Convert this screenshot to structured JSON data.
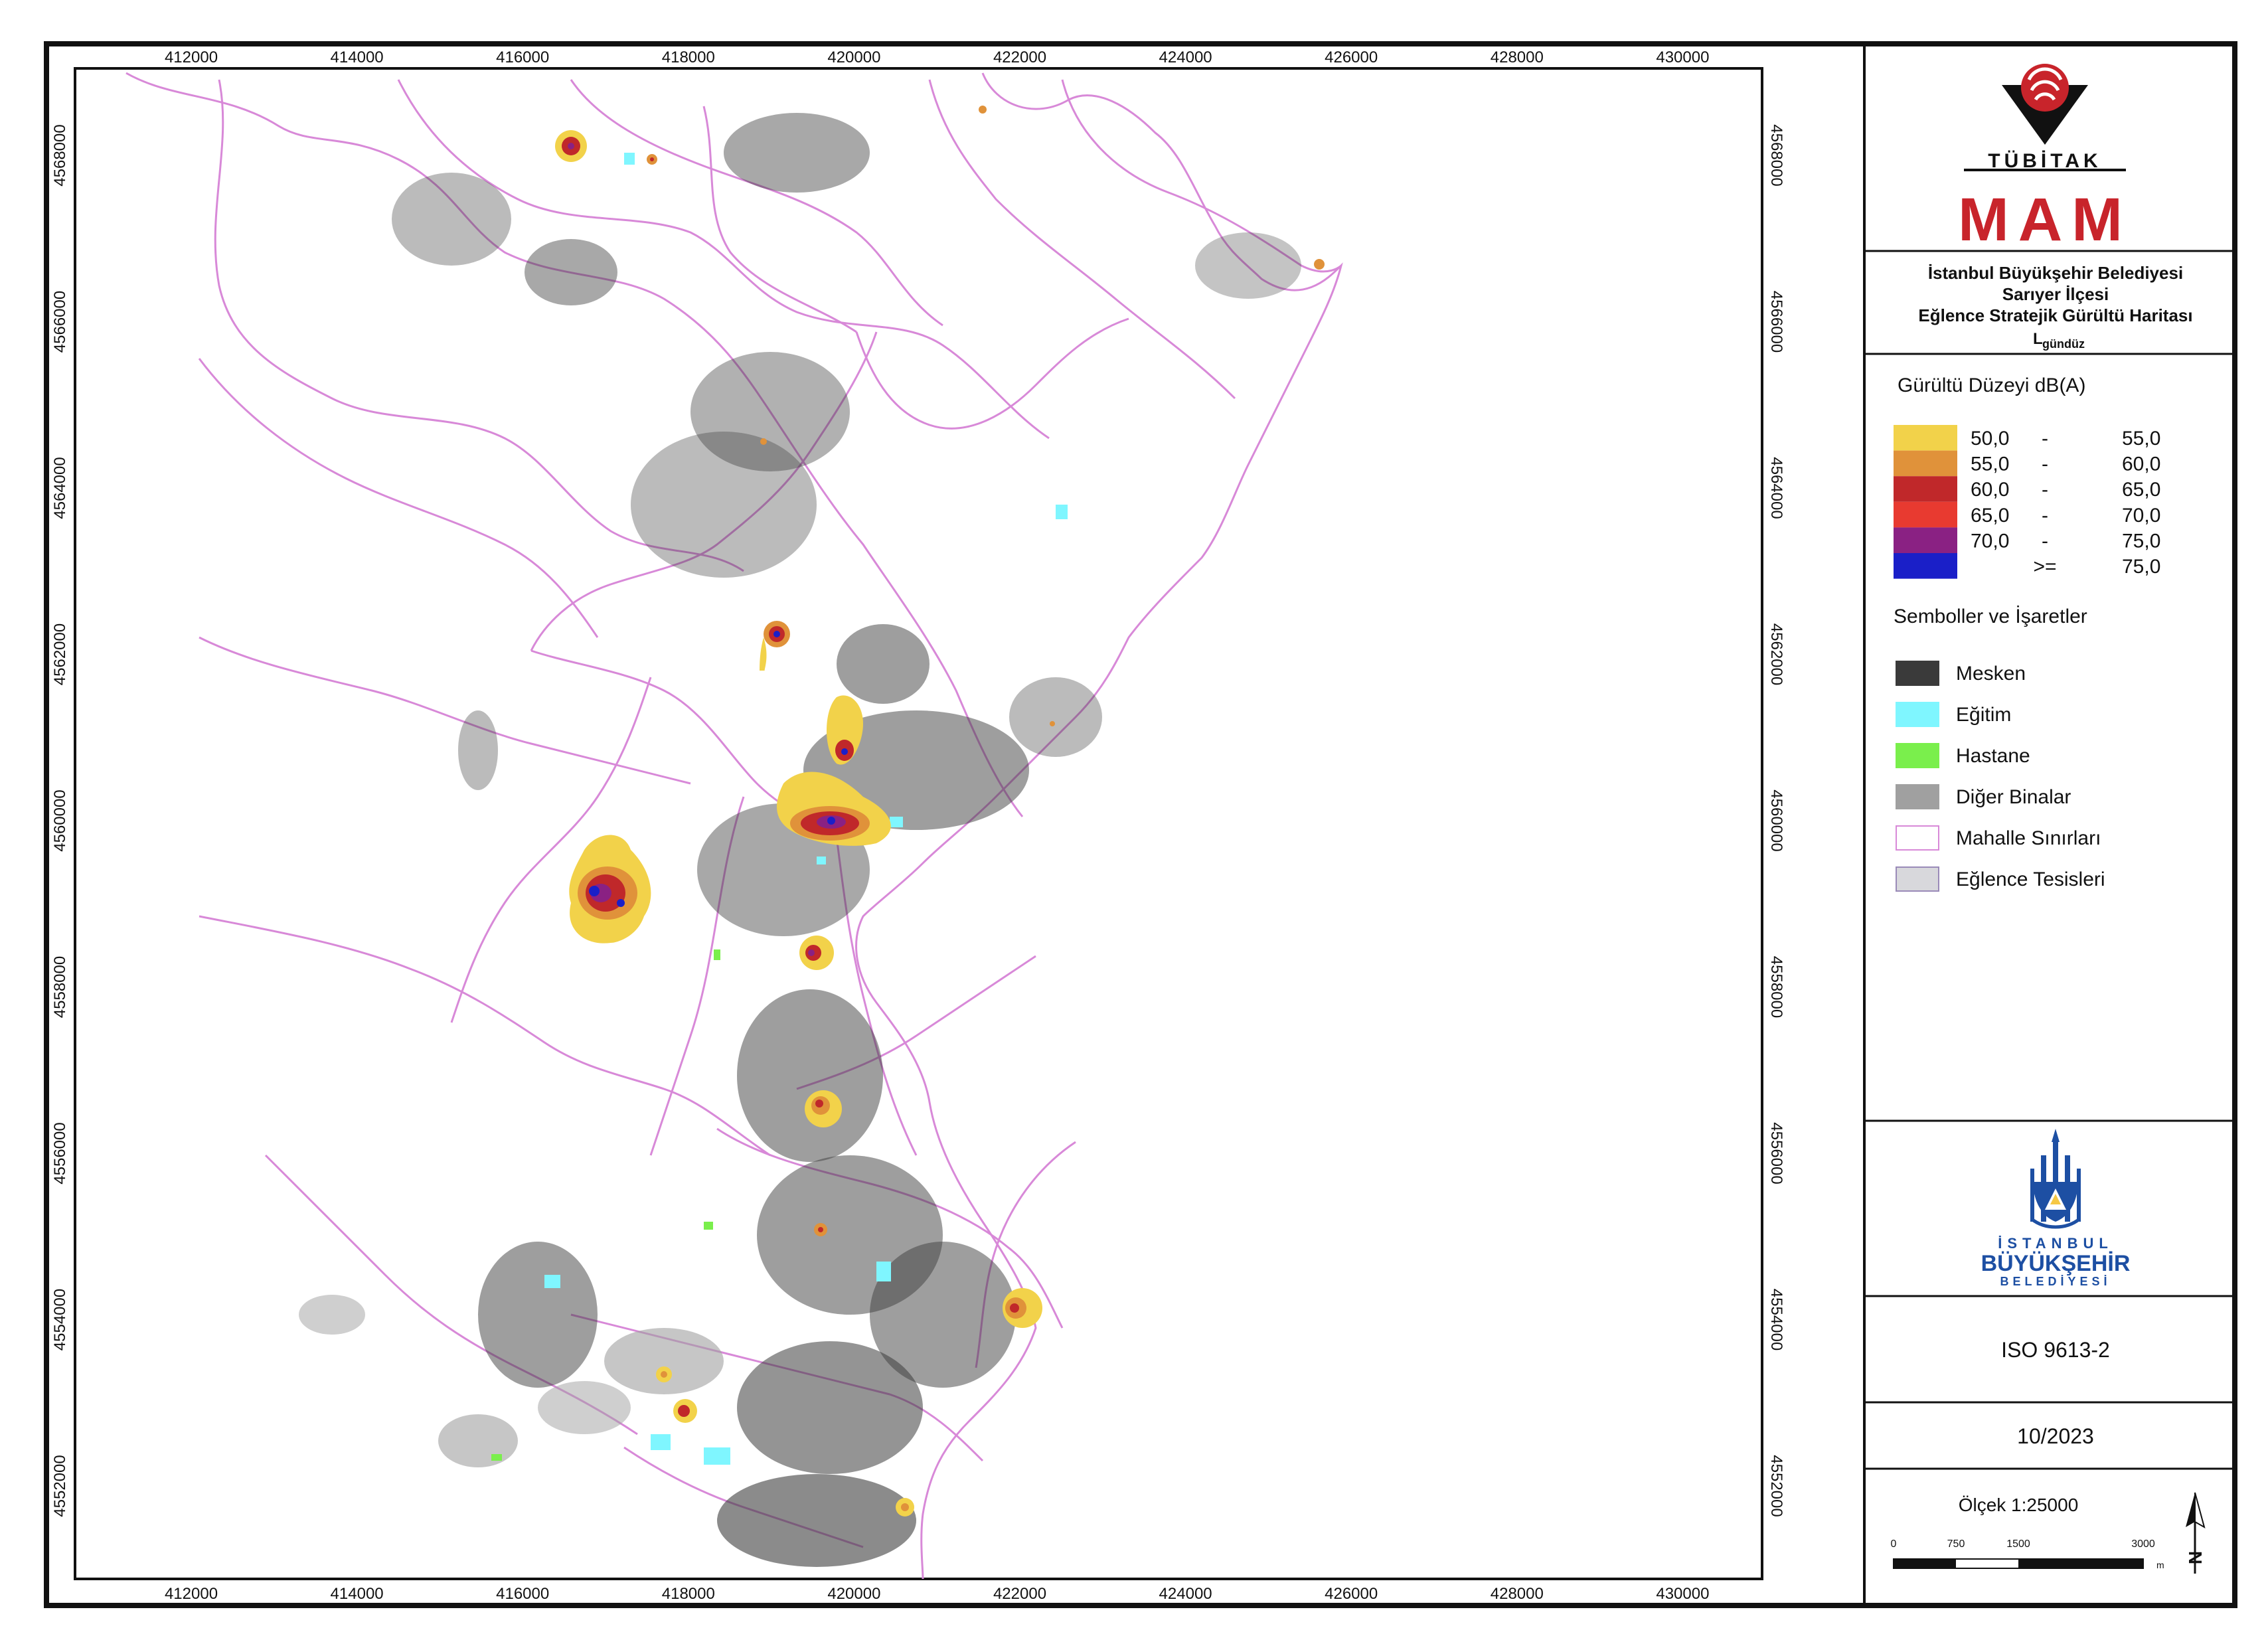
{
  "map": {
    "x_ticks_top": [
      "412000",
      "414000",
      "416000",
      "418000",
      "420000",
      "422000",
      "424000",
      "426000",
      "428000",
      "430000"
    ],
    "x_ticks_bottom": [
      "412000",
      "414000",
      "416000",
      "418000",
      "420000",
      "422000",
      "424000",
      "426000",
      "428000",
      "430000"
    ],
    "y_ticks_left": [
      "4568000",
      "4566000",
      "4564000",
      "4562000",
      "4560000",
      "4558000",
      "4556000",
      "4554000",
      "4552000"
    ],
    "y_ticks_right": [
      "4568000",
      "4566000",
      "4564000",
      "4562000",
      "4560000",
      "4558000",
      "4556000",
      "4554000",
      "4552000"
    ]
  },
  "logo_tubitak": {
    "wordmark": "TÜBİTAK",
    "sub": "MAM",
    "color": "#c8242b"
  },
  "title": {
    "line1": "İstanbul Büyükşehir Belediyesi",
    "line2": "Sarıyer İlçesi",
    "line3": "Eğlence Stratejik Gürültü Haritası",
    "metric_main": "L",
    "metric_sub": "gündüz"
  },
  "legend": {
    "noise_title": "Gürültü Düzeyi dB(A)",
    "noise_levels": [
      {
        "low": "50,0",
        "sep": "-",
        "high": "55,0",
        "color": "#f2d24a"
      },
      {
        "low": "55,0",
        "sep": "-",
        "high": "60,0",
        "color": "#e0923a"
      },
      {
        "low": "60,0",
        "sep": "-",
        "high": "65,0",
        "color": "#c0282a"
      },
      {
        "low": "65,0",
        "sep": "-",
        "high": "70,0",
        "color": "#e83a30"
      },
      {
        "low": "70,0",
        "sep": "-",
        "high": "75,0",
        "color": "#8a2183"
      },
      {
        "low": "",
        "sep": ">=",
        "high": "75,0",
        "color": "#1a1fc8"
      }
    ],
    "symbols_title": "Semboller ve İşaretler",
    "symbols": [
      {
        "label": "Mesken",
        "fill": "#3a3a3a",
        "stroke": "#3a3a3a"
      },
      {
        "label": "Eğitim",
        "fill": "#7ff6ff",
        "stroke": "#7ff6ff"
      },
      {
        "label": "Hastane",
        "fill": "#7aef4c",
        "stroke": "#7aef4c"
      },
      {
        "label": "Diğer Binalar",
        "fill": "#a0a0a0",
        "stroke": "#a0a0a0"
      },
      {
        "label": "Mahalle Sınırları",
        "fill": "#ffffff",
        "stroke": "#d889d8"
      },
      {
        "label": "Eğlence Tesisleri",
        "fill": "#d8d8dc",
        "stroke": "#9a8ab8"
      }
    ]
  },
  "logo_ibb": {
    "line1": "İSTANBUL",
    "line2": "BÜYÜKŞEHİR",
    "line3": "BELEDİYESİ",
    "color": "#1d4fa3"
  },
  "standard": "ISO 9613-2",
  "date": "10/2023",
  "scale": {
    "label": "Ölçek 1:25000",
    "ticks": [
      "0",
      "750",
      "1500",
      "3000"
    ],
    "unit": "m",
    "north": "N"
  }
}
